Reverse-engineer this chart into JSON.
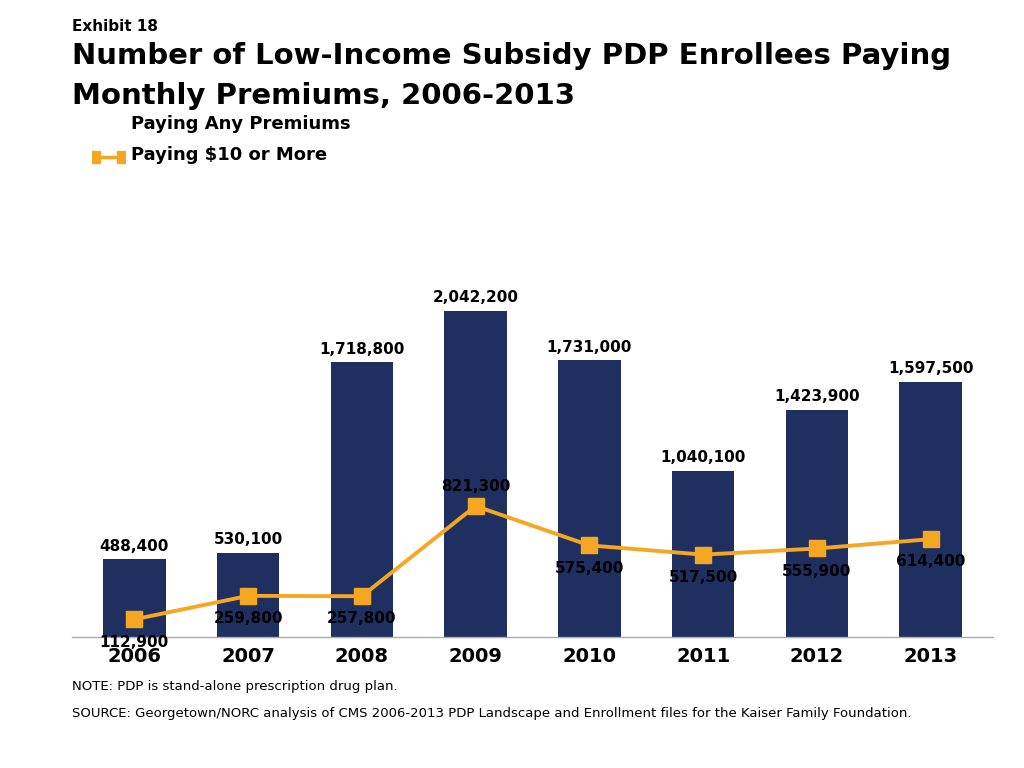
{
  "exhibit_label": "Exhibit 18",
  "title_line1": "Number of Low-Income Subsidy PDP Enrollees Paying",
  "title_line2": "Monthly Premiums, 2006-2013",
  "years": [
    2006,
    2007,
    2008,
    2009,
    2010,
    2011,
    2012,
    2013
  ],
  "bar_values": [
    488400,
    530100,
    1718800,
    2042200,
    1731000,
    1040100,
    1423900,
    1597500
  ],
  "line_values": [
    112900,
    259800,
    257800,
    821300,
    575400,
    517500,
    555900,
    614400
  ],
  "bar_labels": [
    "488,400",
    "530,100",
    "1,718,800",
    "2,042,200",
    "1,731,000",
    "1,040,100",
    "1,423,900",
    "1,597,500"
  ],
  "line_labels": [
    "112,900",
    "259,800",
    "257,800",
    "821,300",
    "575,400",
    "517,500",
    "555,900",
    "614,400"
  ],
  "bar_color": "#1f3060",
  "line_color": "#f5a623",
  "legend_bar_label": "Paying Any Premiums",
  "legend_line_label": "Paying $10 or More",
  "note_line1": "NOTE: PDP is stand-alone prescription drug plan.",
  "note_line2": "SOURCE: Georgetown/NORC analysis of CMS 2006-2013 PDP Landscape and Enrollment files for the Kaiser Family Foundation.",
  "kaiser_box_color": "#1f3060",
  "background_color": "#ffffff",
  "ylim": [
    0,
    2400000
  ],
  "bar_label_offsets": [
    35000,
    35000,
    35000,
    35000,
    35000,
    35000,
    35000,
    35000
  ],
  "line_label_offsets": [
    -95000,
    -95000,
    -95000,
    75000,
    -95000,
    -95000,
    -95000,
    -95000
  ]
}
